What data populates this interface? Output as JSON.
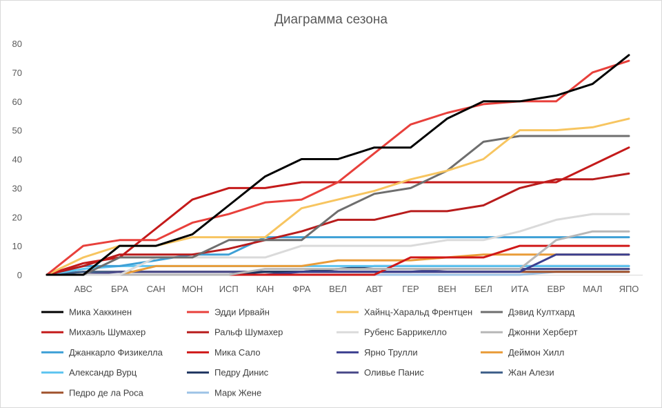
{
  "chart_data": {
    "type": "line",
    "title": "Диаграмма сезона",
    "xlabel": "",
    "ylabel": "",
    "ylim": [
      0,
      80
    ],
    "yticks": [
      0,
      10,
      20,
      30,
      40,
      50,
      60,
      70,
      80
    ],
    "grid": false,
    "legend_position": "bottom",
    "x": [
      "",
      "АВС",
      "БРА",
      "САН",
      "МОН",
      "ИСП",
      "КАН",
      "ФРА",
      "ВЕЛ",
      "АВТ",
      "ГЕР",
      "ВЕН",
      "БЕЛ",
      "ИТА",
      "ЕВР",
      "МАЛ",
      "ЯПО"
    ],
    "series": [
      {
        "name": "Мика Хаккинен",
        "color": "#000000",
        "values": [
          0,
          0,
          10,
          10,
          14,
          24,
          34,
          40,
          40,
          44,
          44,
          54,
          60,
          60,
          62,
          66,
          76
        ]
      },
      {
        "name": "Эдди Ирвайн",
        "color": "#e8403b",
        "values": [
          0,
          10,
          12,
          12,
          18,
          21,
          25,
          26,
          32,
          42,
          52,
          56,
          59,
          60,
          60,
          70,
          74
        ]
      },
      {
        "name": "Хайнц-Харальд Френтцен",
        "color": "#f7c560",
        "values": [
          0,
          6,
          10,
          10,
          13,
          13,
          13,
          23,
          26,
          29,
          33,
          36,
          40,
          50,
          50,
          51,
          54
        ]
      },
      {
        "name": "Дэвид Култхард",
        "color": "#6e6e6e",
        "values": [
          0,
          0,
          6,
          6,
          6,
          12,
          12,
          12,
          22,
          28,
          30,
          36,
          46,
          48,
          48,
          48,
          48
        ]
      },
      {
        "name": "Михаэль Шумахер",
        "color": "#c41a1a",
        "values": [
          0,
          4,
          6,
          16,
          26,
          30,
          30,
          32,
          32,
          32,
          32,
          32,
          32,
          32,
          32,
          38,
          44
        ]
      },
      {
        "name": "Ральф Шумахер",
        "color": "#b81c1c",
        "values": [
          0,
          3,
          7,
          7,
          7,
          9,
          12,
          15,
          19,
          19,
          22,
          22,
          24,
          30,
          33,
          33,
          35
        ]
      },
      {
        "name": "Рубенс Баррикелло",
        "color": "#dadada",
        "values": [
          0,
          0,
          0,
          6,
          6,
          6,
          6,
          10,
          10,
          10,
          10,
          12,
          12,
          15,
          19,
          21,
          21
        ]
      },
      {
        "name": "Джонни Херберт",
        "color": "#b7b7b7",
        "values": [
          0,
          0,
          0,
          0,
          0,
          0,
          2,
          2,
          2,
          2,
          2,
          2,
          2,
          2,
          12,
          15,
          15
        ]
      },
      {
        "name": "Джанкарло Физикелла",
        "color": "#3ea0d6",
        "values": [
          0,
          3,
          3,
          5,
          7,
          7,
          13,
          13,
          13,
          13,
          13,
          13,
          13,
          13,
          13,
          13,
          13
        ]
      },
      {
        "name": "Мика Сало",
        "color": "#d01818",
        "values": [
          0,
          0,
          0,
          0,
          0,
          0,
          0,
          0,
          0,
          0,
          6,
          6,
          6,
          10,
          10,
          10,
          10
        ]
      },
      {
        "name": "Ярно Трулли",
        "color": "#3b3f8f",
        "values": [
          0,
          0,
          0,
          0,
          0,
          0,
          0,
          1,
          1,
          1,
          1,
          1,
          1,
          1,
          7,
          7,
          7
        ]
      },
      {
        "name": "Деймон Хилл",
        "color": "#e99c38",
        "values": [
          0,
          0,
          0,
          3,
          3,
          3,
          3,
          3,
          5,
          5,
          5,
          6,
          7,
          7,
          7,
          7,
          7
        ]
      },
      {
        "name": "Александр Вурц",
        "color": "#5ec4f0",
        "values": [
          0,
          2,
          3,
          3,
          3,
          3,
          3,
          3,
          3,
          3,
          3,
          3,
          3,
          3,
          3,
          3,
          3
        ]
      },
      {
        "name": "Педру Динис",
        "color": "#1f3560",
        "values": [
          0,
          0,
          0,
          0,
          0,
          0,
          1,
          1,
          2,
          3,
          3,
          3,
          3,
          3,
          3,
          3,
          3
        ]
      },
      {
        "name": "Оливье Панис",
        "color": "#4b4b8a",
        "values": [
          0,
          0,
          1,
          1,
          1,
          1,
          1,
          1,
          1,
          1,
          1,
          2,
          2,
          2,
          2,
          2,
          2
        ]
      },
      {
        "name": "Жан Алези",
        "color": "#3e5f8a",
        "values": [
          0,
          1,
          1,
          1,
          1,
          1,
          1,
          1,
          2,
          2,
          2,
          2,
          2,
          2,
          2,
          2,
          2
        ]
      },
      {
        "name": "Педро де ла Роса",
        "color": "#a0522d",
        "values": [
          0,
          1,
          1,
          1,
          1,
          1,
          1,
          1,
          1,
          1,
          1,
          1,
          1,
          1,
          1,
          1,
          1
        ]
      },
      {
        "name": "Марк Жене",
        "color": "#9dc3e6",
        "values": [
          0,
          0,
          0,
          0,
          0,
          0,
          0,
          0,
          0,
          0,
          0,
          0,
          0,
          0,
          1,
          1,
          1
        ]
      }
    ]
  }
}
